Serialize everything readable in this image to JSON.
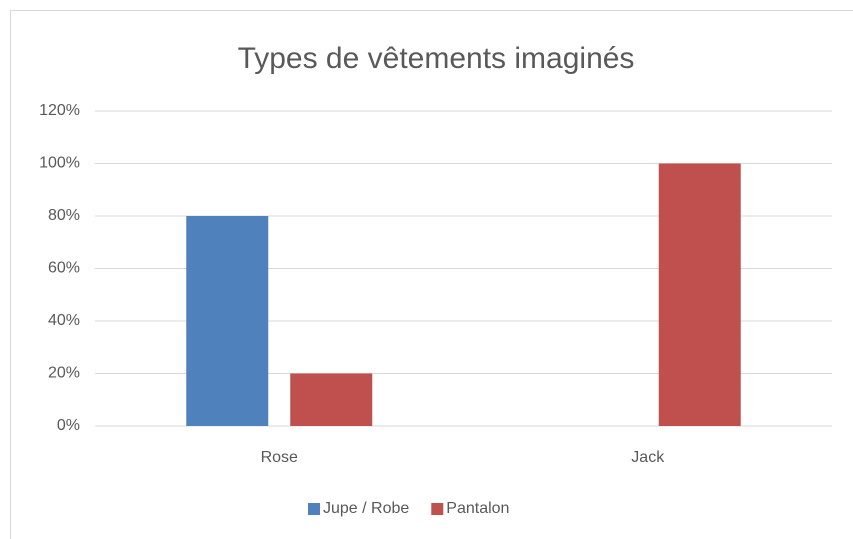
{
  "chart_data": {
    "type": "bar",
    "title": "Types de vêtements imaginés",
    "categories": [
      "Rose",
      "Jack"
    ],
    "series": [
      {
        "name": "Jupe / Robe",
        "color": "#4f81bd",
        "values": [
          80,
          0
        ]
      },
      {
        "name": "Pantalon",
        "color": "#c0504d",
        "values": [
          20,
          100
        ]
      }
    ],
    "ylim": [
      0,
      120
    ],
    "yticks": [
      {
        "value": 0,
        "label": "0%"
      },
      {
        "value": 20,
        "label": "20%"
      },
      {
        "value": 40,
        "label": "40%"
      },
      {
        "value": 60,
        "label": "60%"
      },
      {
        "value": 80,
        "label": "80%"
      },
      {
        "value": 100,
        "label": "100%"
      },
      {
        "value": 120,
        "label": "120%"
      }
    ],
    "grid": true,
    "legend": "bottom"
  }
}
